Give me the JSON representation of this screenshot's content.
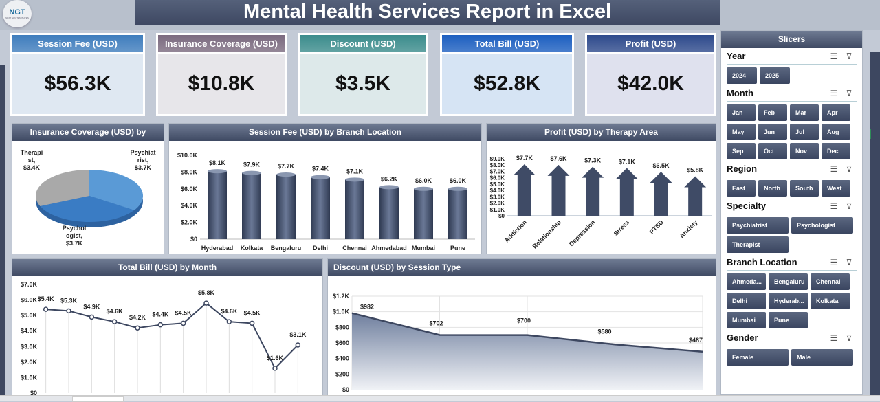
{
  "title": "Mental Health Services Report in Excel",
  "logo": {
    "text": "NGT",
    "sub": "NEXT GEN TEMPLATES"
  },
  "kpis": [
    {
      "label": "Session Fee (USD)",
      "value": "$56.3K",
      "color": "#3f7dbd",
      "bg": "#dfe8f2"
    },
    {
      "label": "Insurance Coverage (USD)",
      "value": "$10.8K",
      "color": "#7b6a7f",
      "bg": "#e7e6ea"
    },
    {
      "label": "Discount (USD)",
      "value": "$3.5K",
      "color": "#3b8c8c",
      "bg": "#dde9ea"
    },
    {
      "label": "Total Bill (USD)",
      "value": "$52.8K",
      "color": "#1d5fc0",
      "bg": "#d6e4f4"
    },
    {
      "label": "Profit (USD)",
      "value": "$42.0K",
      "color": "#2e4a8c",
      "bg": "#dfe1ee"
    }
  ],
  "chart_data": [
    {
      "type": "pie",
      "title": "Insurance Coverage (USD) by",
      "categories": [
        "Psychiatrist",
        "Psychologist",
        "Therapist"
      ],
      "values": [
        3700,
        3700,
        3400
      ],
      "labels": [
        "Psychiat rist, $3.7K",
        "Psychol ogist, $3.7K",
        "Therapi st, $3.4K"
      ],
      "colors": [
        "#5a9ad6",
        "#3a7cc4",
        "#a9a9a9"
      ]
    },
    {
      "type": "bar",
      "title": "Session Fee (USD) by Branch Location",
      "categories": [
        "Hyderabad",
        "Kolkata",
        "Bengaluru",
        "Delhi",
        "Chennai",
        "Ahmedabad",
        "Mumbai",
        "Pune"
      ],
      "values": [
        8100,
        7900,
        7700,
        7400,
        7100,
        6200,
        6000,
        6000
      ],
      "labels": [
        "$8.1K",
        "$7.9K",
        "$7.7K",
        "$7.4K",
        "$7.1K",
        "$6.2K",
        "$6.0K",
        "$6.0K"
      ],
      "ylim": [
        0,
        10000
      ],
      "yticks": [
        "$0",
        "$2.0K",
        "$4.0K",
        "$6.0K",
        "$8.0K",
        "$10.0K"
      ]
    },
    {
      "type": "bar",
      "title": "Profit (USD) by Therapy Area",
      "categories": [
        "Addiction",
        "Relationship",
        "Depression",
        "Stress",
        "PTSD",
        "Anxiety"
      ],
      "values": [
        7700,
        7600,
        7300,
        7100,
        6500,
        5800
      ],
      "labels": [
        "$7.7K",
        "$7.6K",
        "$7.3K",
        "$7.1K",
        "$6.5K",
        "$5.8K"
      ],
      "ylim": [
        0,
        9000
      ],
      "yticks": [
        "$0",
        "$1.0K",
        "$2.0K",
        "$3.0K",
        "$4.0K",
        "$5.0K",
        "$6.0K",
        "$7.0K",
        "$8.0K",
        "$9.0K"
      ]
    },
    {
      "type": "line",
      "title": "Total Bill (USD) by Month",
      "values": [
        5400,
        5300,
        4900,
        4600,
        4200,
        4400,
        4500,
        5800,
        4600,
        4500,
        1600,
        3100
      ],
      "labels": [
        "$5.4K",
        "$5.3K",
        "$4.9K",
        "$4.6K",
        "$4.2K",
        "$4.4K",
        "$4.5K",
        "$5.8K",
        "$4.6K",
        "$4.5K",
        "$1.6K",
        "$3.1K"
      ],
      "ylim": [
        0,
        7000
      ],
      "yticks": [
        "$0",
        "$1.0K",
        "$2.0K",
        "$3.0K",
        "$4.0K",
        "$5.0K",
        "$6.0K",
        "$7.0K"
      ]
    },
    {
      "type": "area",
      "title": "Discount (USD) by Session Type",
      "values": [
        982,
        702,
        700,
        580,
        487
      ],
      "labels": [
        "$982",
        "$702",
        "$700",
        "$580",
        "$487"
      ],
      "ylim": [
        0,
        1200
      ],
      "yticks": [
        "$0",
        "$200",
        "$400",
        "$600",
        "$800",
        "$1.0K",
        "$1.2K"
      ]
    }
  ],
  "slicers": {
    "title": "Slicers",
    "groups": [
      {
        "name": "Year",
        "items": [
          "2024",
          "2025"
        ]
      },
      {
        "name": "Month",
        "items": [
          "Jan",
          "Feb",
          "Mar",
          "Apr",
          "May",
          "Jun",
          "Jul",
          "Aug",
          "Sep",
          "Oct",
          "Nov",
          "Dec"
        ]
      },
      {
        "name": "Region",
        "items": [
          "East",
          "North",
          "South",
          "West"
        ]
      },
      {
        "name": "Specialty",
        "items": [
          "Psychiatrist",
          "Psychologist",
          "Therapist"
        ]
      },
      {
        "name": "Branch Location",
        "items": [
          "Ahmeda...",
          "Bengaluru",
          "Chennai",
          "Delhi",
          "Hyderab...",
          "Kolkata",
          "Mumbai",
          "Pune"
        ]
      },
      {
        "name": "Gender",
        "items": [
          "Female",
          "Male"
        ]
      }
    ]
  }
}
